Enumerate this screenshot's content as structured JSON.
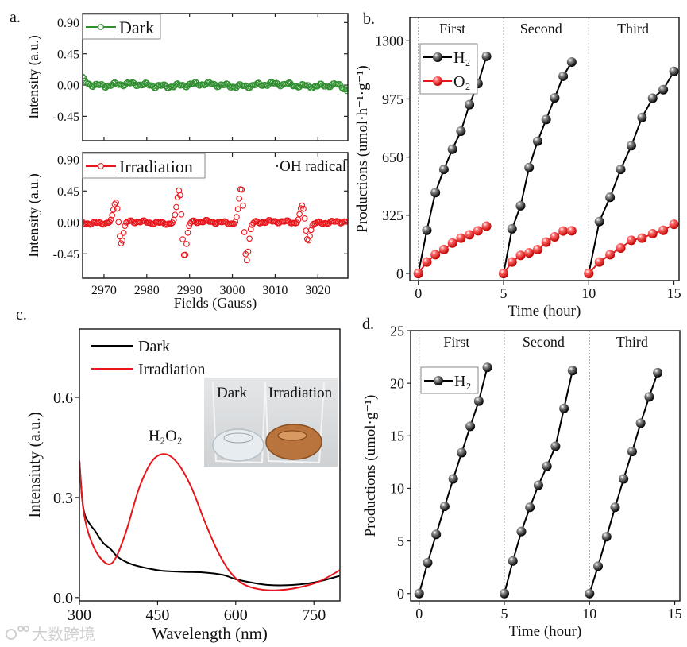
{
  "panel_labels": [
    "a.",
    "b.",
    "c.",
    "d."
  ],
  "watermark": "大数跨境",
  "chart_data": [
    {
      "id": "panel-a-dark",
      "type": "scatter",
      "title": "",
      "xlabel": "",
      "ylabel": "Intensity (a.u.)",
      "xlim": [
        2965,
        3027
      ],
      "ylim": [
        -0.8,
        1.03
      ],
      "xticks": [
        2970,
        2980,
        2990,
        3000,
        3010,
        3020
      ],
      "xticklabels": [],
      "yticks": [
        0.9,
        0.45,
        0.0,
        -0.45
      ],
      "yticklabels": [
        "0.90",
        "0.45",
        "0.00",
        "-0.45"
      ],
      "legend": {
        "placement": "top-left",
        "boxed": true
      },
      "series": [
        {
          "name": "Dark",
          "color": "#2f8f2f",
          "marker": "open-circle",
          "generator": {
            "peaks": [],
            "width_gauss": 0.65,
            "noise_amplitude": 0.035,
            "step_gauss": 0.3,
            "start_offset": 0.1,
            "end_offset": -0.12
          }
        }
      ],
      "annotations": []
    },
    {
      "id": "panel-a-irradiation",
      "type": "scatter",
      "title": "",
      "xlabel": "Fields (Gauss)",
      "ylabel": "Intensity (a.u.)",
      "xlim": [
        2965,
        3027
      ],
      "ylim": [
        -0.8,
        1.0
      ],
      "xticks": [
        2970,
        2980,
        2990,
        3000,
        3010,
        3020
      ],
      "xticklabels": [
        "2970",
        "2980",
        "2990",
        "3000",
        "3010",
        "3020"
      ],
      "yticks": [
        0.9,
        0.45,
        0.0,
        -0.45
      ],
      "yticklabels": [
        "0.90",
        "0.45",
        "0.00",
        "-0.45"
      ],
      "legend": {
        "placement": "top-left",
        "boxed": true
      },
      "series": [
        {
          "name": "Irradiation",
          "color": "#e8161c",
          "marker": "open-circle",
          "generator": {
            "peaks": [
              {
                "center": 2973.4,
                "amplitude": 0.29
              },
              {
                "center": 2988.2,
                "amplitude": 0.47
              },
              {
                "center": 3002.7,
                "amplitude": 0.51
              },
              {
                "center": 3017.0,
                "amplitude": 0.24
              }
            ],
            "width_gauss": 0.65,
            "noise_amplitude": 0.025,
            "step_gauss": 0.3,
            "start_offset": 0,
            "end_offset": 0
          }
        }
      ],
      "annotations": [
        {
          "text": "·OH radical",
          "placement": "top-right"
        }
      ]
    },
    {
      "id": "panel-b",
      "type": "line",
      "title": "",
      "xlabel": "Time (hour)",
      "ylabel": "Productions (umol·h⁻¹·g⁻¹)",
      "xlim": [
        -0.5,
        15.3
      ],
      "ylim": [
        -40,
        1430
      ],
      "xticks": [
        0,
        5,
        10,
        15
      ],
      "xticklabels": [
        "0",
        "5",
        "10",
        "15"
      ],
      "yticks": [
        0,
        325,
        650,
        975,
        1300
      ],
      "yticklabels": [
        "0",
        "325",
        "650",
        "975",
        "1300"
      ],
      "run_dividers": [
        0,
        5,
        10
      ],
      "run_labels": [
        {
          "text": "First",
          "x": 2
        },
        {
          "text": "Second",
          "x": 7.2
        },
        {
          "text": "Third",
          "x": 12.6
        }
      ],
      "legend": {
        "placement": "top-left",
        "boxed": true
      },
      "series": [
        {
          "name": "H₂",
          "color": "#000000",
          "marker": "sphere",
          "x": [
            0,
            0.5,
            1,
            1.5,
            2,
            2.5,
            3,
            3.5,
            4,
            5,
            5.5,
            6,
            6.5,
            7,
            7.5,
            8,
            8.5,
            9,
            10,
            10.625,
            11.25,
            11.875,
            12.5,
            13.125,
            13.75,
            14.375,
            15
          ],
          "runs": 3,
          "values": [
            0,
            241,
            452,
            581,
            694,
            795,
            943,
            1061,
            1213,
            0,
            249,
            378,
            592,
            739,
            860,
            981,
            1102,
            1181,
            0,
            290,
            425,
            581,
            714,
            871,
            979,
            1027,
            1129
          ]
        },
        {
          "name": "O₂",
          "color": "#e8161c",
          "marker": "sphere",
          "x": [
            0,
            0.5,
            1,
            1.5,
            2,
            2.5,
            3,
            3.5,
            4,
            5,
            5.5,
            6,
            6.5,
            7,
            7.5,
            8,
            8.5,
            9,
            10,
            10.625,
            11.25,
            11.875,
            12.5,
            13.125,
            13.75,
            14.375,
            15
          ],
          "runs": 3,
          "values": [
            0,
            64,
            105,
            133,
            170,
            197,
            216,
            238,
            264,
            0,
            64,
            101,
            115,
            133,
            175,
            204,
            237,
            238,
            0,
            64,
            105,
            142,
            185,
            197,
            222,
            241,
            275
          ]
        }
      ],
      "annotations": []
    },
    {
      "id": "panel-c",
      "type": "line",
      "title": "",
      "xlabel": "Wavelength (nm)",
      "ylabel": "Intensiuty (a.u.)",
      "xlim": [
        300,
        800
      ],
      "ylim": [
        -0.01,
        0.805
      ],
      "xticks": [
        300,
        450,
        600,
        750
      ],
      "xticklabels": [
        "300",
        "450",
        "600",
        "750"
      ],
      "yticks": [
        0.0,
        0.3,
        0.6
      ],
      "yticklabels": [
        "0.0",
        "0.3",
        "0.6"
      ],
      "legend": {
        "placement": "top-left",
        "boxed": false
      },
      "series": [
        {
          "name": "Dark",
          "color": "#000000",
          "x": [
            300,
            305,
            310,
            320,
            330,
            345,
            360,
            375,
            400,
            430,
            460,
            500,
            540,
            575,
            600,
            630,
            660,
            700,
            750,
            800
          ],
          "values": [
            0.41,
            0.3,
            0.25,
            0.22,
            0.2,
            0.165,
            0.145,
            0.12,
            0.1,
            0.088,
            0.08,
            0.077,
            0.075,
            0.068,
            0.055,
            0.045,
            0.038,
            0.037,
            0.045,
            0.065
          ]
        },
        {
          "name": "Irradiation",
          "color": "#e8161c",
          "x": [
            300,
            305,
            310,
            320,
            335,
            355,
            370,
            390,
            415,
            440,
            465,
            490,
            515,
            540,
            565,
            590,
            615,
            645,
            680,
            720,
            760,
            800
          ],
          "values": [
            0.41,
            0.3,
            0.24,
            0.18,
            0.13,
            0.1,
            0.12,
            0.2,
            0.33,
            0.41,
            0.43,
            0.4,
            0.33,
            0.23,
            0.14,
            0.075,
            0.04,
            0.025,
            0.022,
            0.03,
            0.048,
            0.082
          ]
        }
      ],
      "annotations": [
        {
          "text": "H₂O₂",
          "x": 465,
          "y": 0.47
        }
      ],
      "inset_photo": {
        "labels": [
          "Dark",
          "Irradiation"
        ],
        "colors": {
          "clear": "#e6ecef",
          "solution": "#b8743c"
        }
      }
    },
    {
      "id": "panel-d",
      "type": "line",
      "title": "",
      "xlabel": "Time (hour)",
      "ylabel": "Productions (umol·g⁻¹)",
      "xlim": [
        -0.5,
        15.3
      ],
      "ylim": [
        -0.7,
        25
      ],
      "xticks": [
        0,
        5,
        10,
        15
      ],
      "xticklabels": [
        "0",
        "5",
        "10",
        "15"
      ],
      "yticks": [
        0,
        5,
        10,
        15,
        20,
        25
      ],
      "yticklabels": [
        "0",
        "5",
        "10",
        "15",
        "20",
        "25"
      ],
      "run_dividers": [
        0,
        5,
        10
      ],
      "run_labels": [
        {
          "text": "First",
          "x": 2.2
        },
        {
          "text": "Second",
          "x": 7.3
        },
        {
          "text": "Third",
          "x": 12.5
        }
      ],
      "legend": {
        "placement": "top-left",
        "boxed": true
      },
      "series": [
        {
          "name": "H₂",
          "color": "#000000",
          "marker": "sphere",
          "x": [
            0,
            0.5,
            1,
            1.5,
            2,
            2.5,
            3,
            3.5,
            4,
            5,
            5.5,
            6,
            6.5,
            7,
            7.5,
            8,
            8.5,
            9,
            10,
            10.5,
            11,
            11.5,
            12,
            12.5,
            13,
            13.5,
            14
          ],
          "runs": 3,
          "values": [
            0,
            2.94,
            5.63,
            8.29,
            10.9,
            13.4,
            15.9,
            18.3,
            21.5,
            0,
            3.1,
            5.9,
            8.2,
            10.3,
            12.1,
            14.0,
            17.6,
            21.2,
            0,
            2.6,
            5.4,
            8.2,
            10.9,
            13.5,
            16.2,
            18.7,
            21.0
          ]
        }
      ],
      "annotations": []
    }
  ]
}
